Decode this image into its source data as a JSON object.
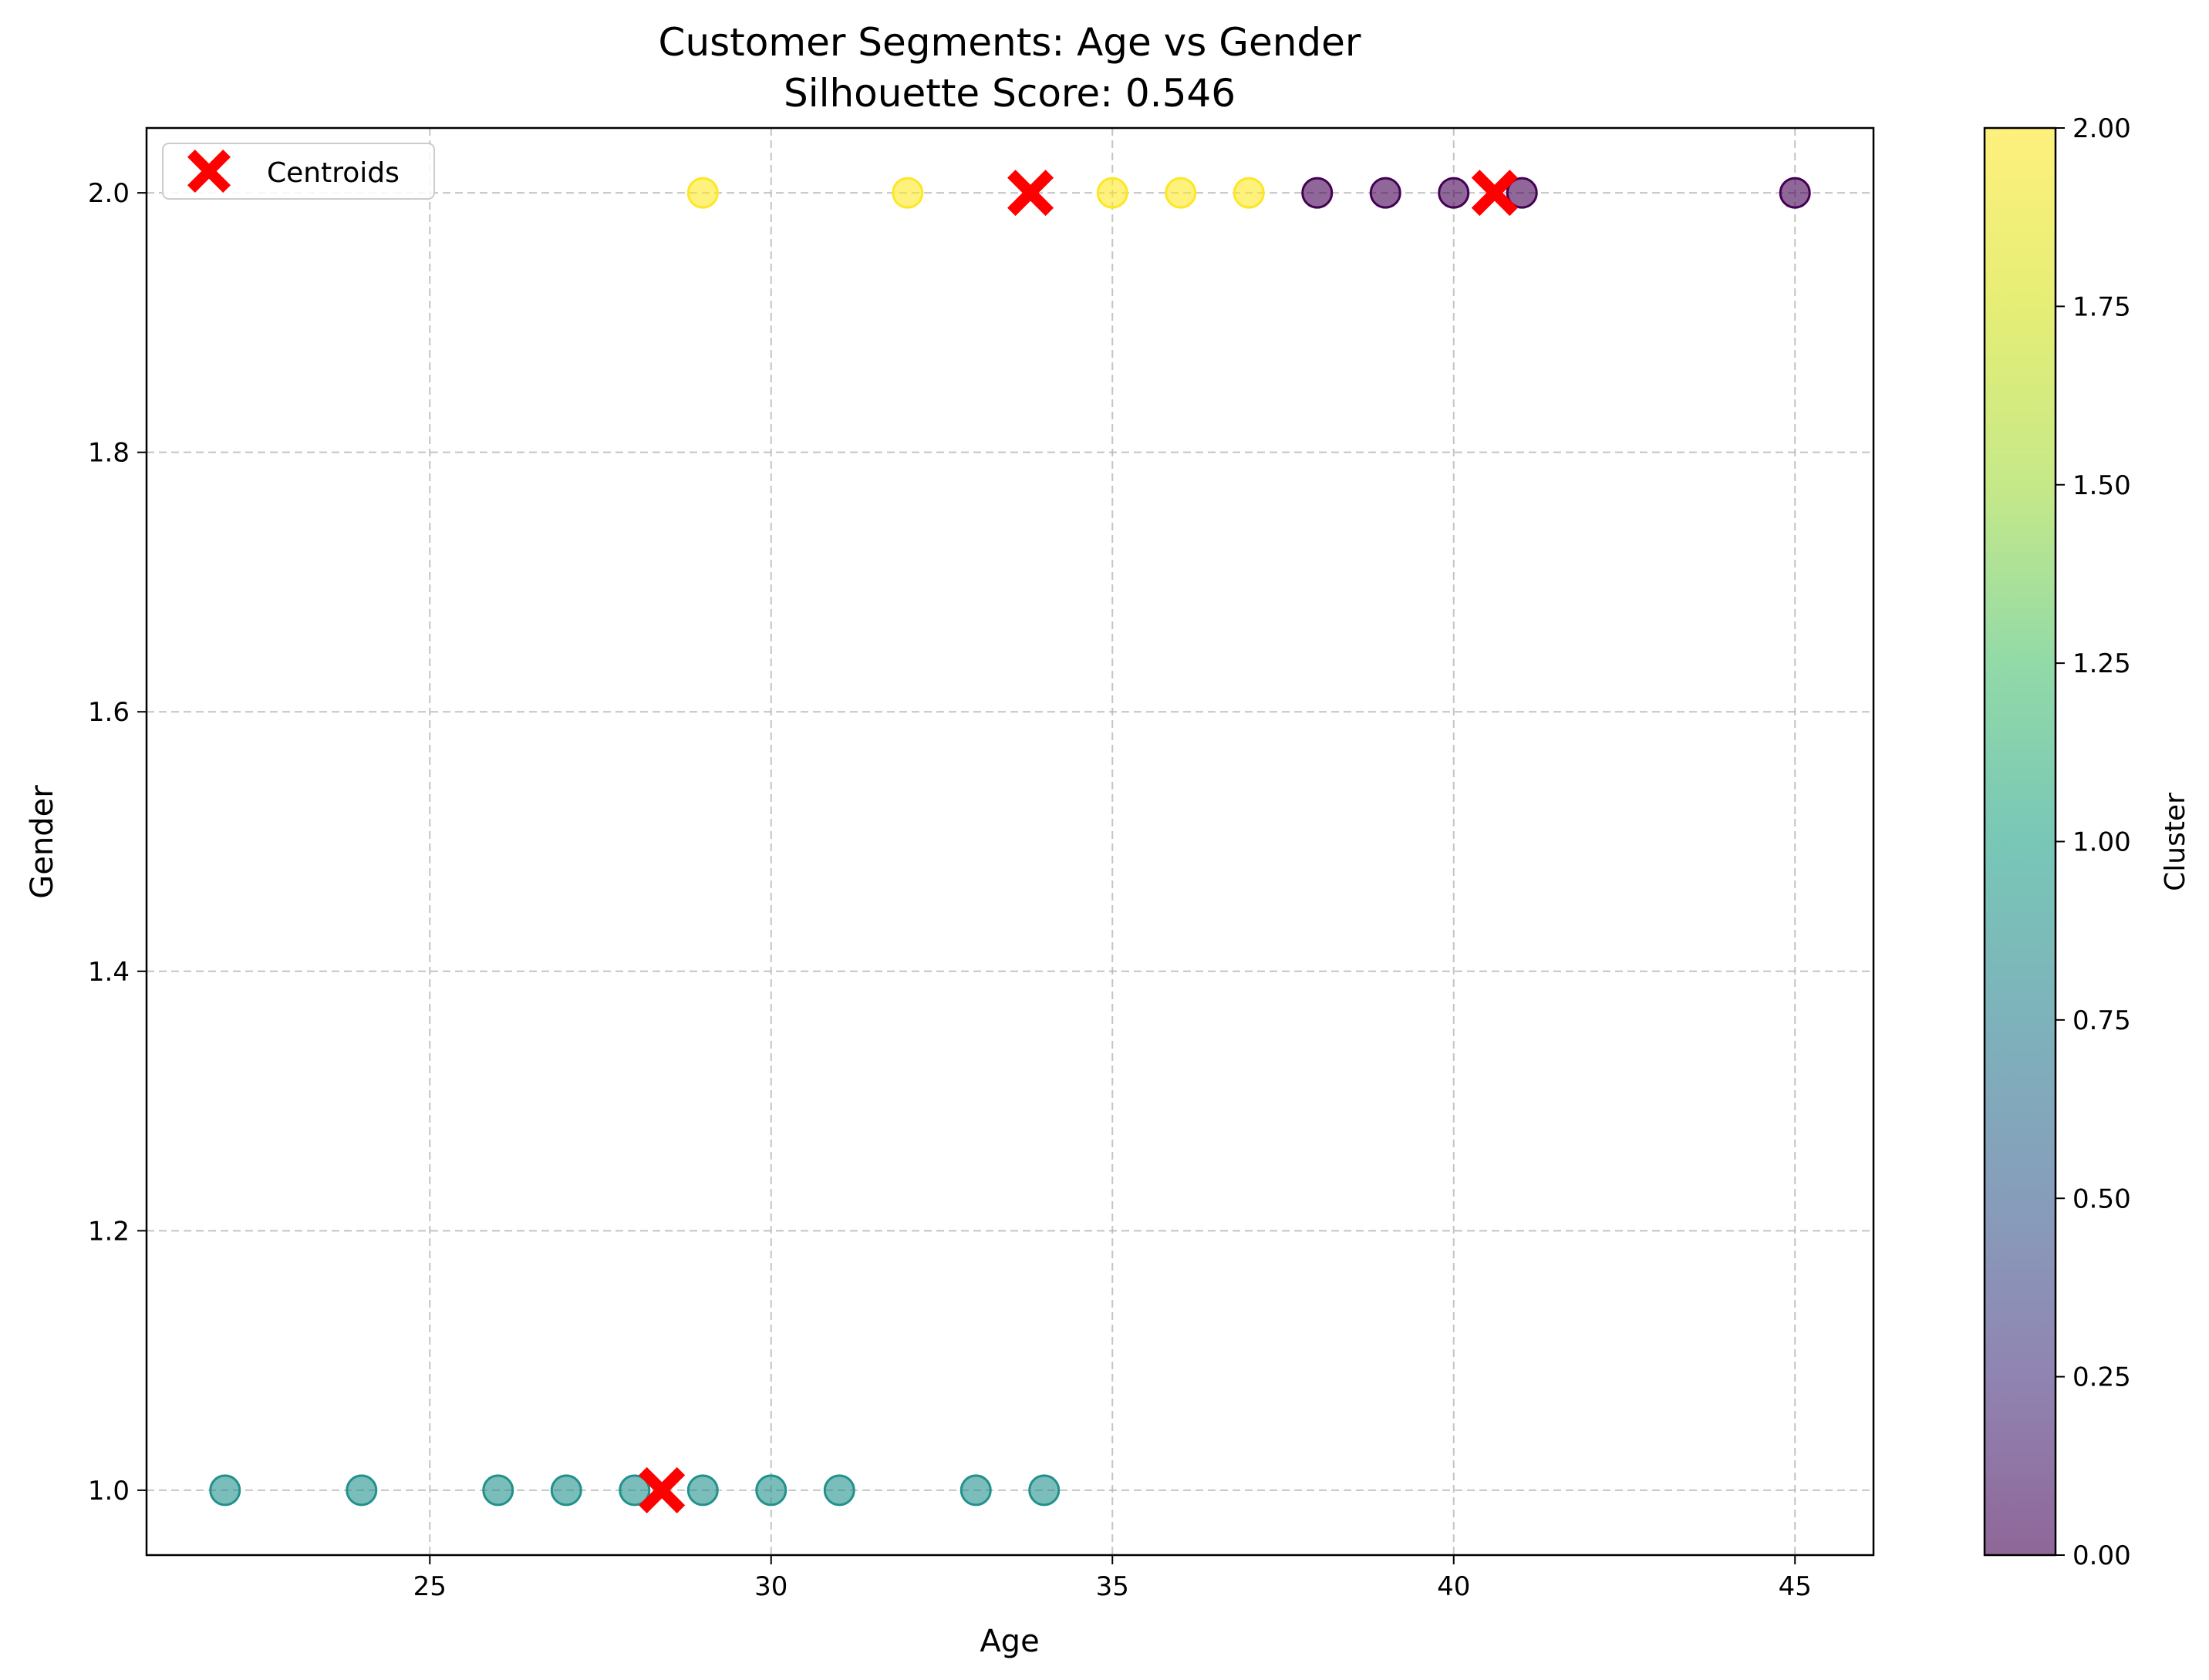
{
  "chart_data": {
    "type": "scatter",
    "title": "Customer Segments: Age vs Gender",
    "subtitle": "Silhouette Score: 0.546",
    "xlabel": "Age",
    "ylabel": "Gender",
    "xlim": [
      20.85,
      46.15
    ],
    "ylim": [
      0.95,
      2.05
    ],
    "xticks": [
      25,
      30,
      35,
      40,
      45
    ],
    "xtick_labels": [
      "25",
      "30",
      "35",
      "40",
      "45"
    ],
    "yticks": [
      1.0,
      1.2,
      1.4,
      1.6,
      1.8,
      2.0
    ],
    "ytick_labels": [
      "1.0",
      "1.2",
      "1.4",
      "1.6",
      "1.8",
      "2.0"
    ],
    "grid": true,
    "legend": {
      "placement": "upper-left",
      "entries": [
        "Centroids"
      ]
    },
    "colorbar": {
      "label": "Cluster",
      "range": [
        0,
        2
      ],
      "ticks": [
        0,
        0.25,
        0.5,
        0.75,
        1.0,
        1.25,
        1.5,
        1.75,
        2.0
      ],
      "tick_labels": [
        "0.00",
        "0.25",
        "0.50",
        "0.75",
        "1.00",
        "1.25",
        "1.50",
        "1.75",
        "2.00"
      ],
      "colormap": "viridis"
    },
    "points": [
      {
        "x": 22,
        "y": 1,
        "cluster": 1
      },
      {
        "x": 24,
        "y": 1,
        "cluster": 1
      },
      {
        "x": 26,
        "y": 1,
        "cluster": 1
      },
      {
        "x": 27,
        "y": 1,
        "cluster": 1
      },
      {
        "x": 28,
        "y": 1,
        "cluster": 1
      },
      {
        "x": 29,
        "y": 1,
        "cluster": 1
      },
      {
        "x": 30,
        "y": 1,
        "cluster": 1
      },
      {
        "x": 31,
        "y": 1,
        "cluster": 1
      },
      {
        "x": 33,
        "y": 1,
        "cluster": 1
      },
      {
        "x": 34,
        "y": 1,
        "cluster": 1
      },
      {
        "x": 29,
        "y": 2,
        "cluster": 2
      },
      {
        "x": 32,
        "y": 2,
        "cluster": 2
      },
      {
        "x": 35,
        "y": 2,
        "cluster": 2
      },
      {
        "x": 36,
        "y": 2,
        "cluster": 2
      },
      {
        "x": 37,
        "y": 2,
        "cluster": 2
      },
      {
        "x": 38,
        "y": 2,
        "cluster": 0
      },
      {
        "x": 39,
        "y": 2,
        "cluster": 0
      },
      {
        "x": 40,
        "y": 2,
        "cluster": 0
      },
      {
        "x": 41,
        "y": 2,
        "cluster": 0
      },
      {
        "x": 45,
        "y": 2,
        "cluster": 0
      }
    ],
    "centroids": [
      {
        "x": 28.4,
        "y": 1
      },
      {
        "x": 33.8,
        "y": 2
      },
      {
        "x": 40.6,
        "y": 2
      }
    ],
    "colors": {
      "cluster_0": "#440154",
      "cluster_1": "#21918c",
      "cluster_2": "#fde725",
      "centroid": "#ff0000",
      "grid": "#b0b0b0"
    }
  }
}
